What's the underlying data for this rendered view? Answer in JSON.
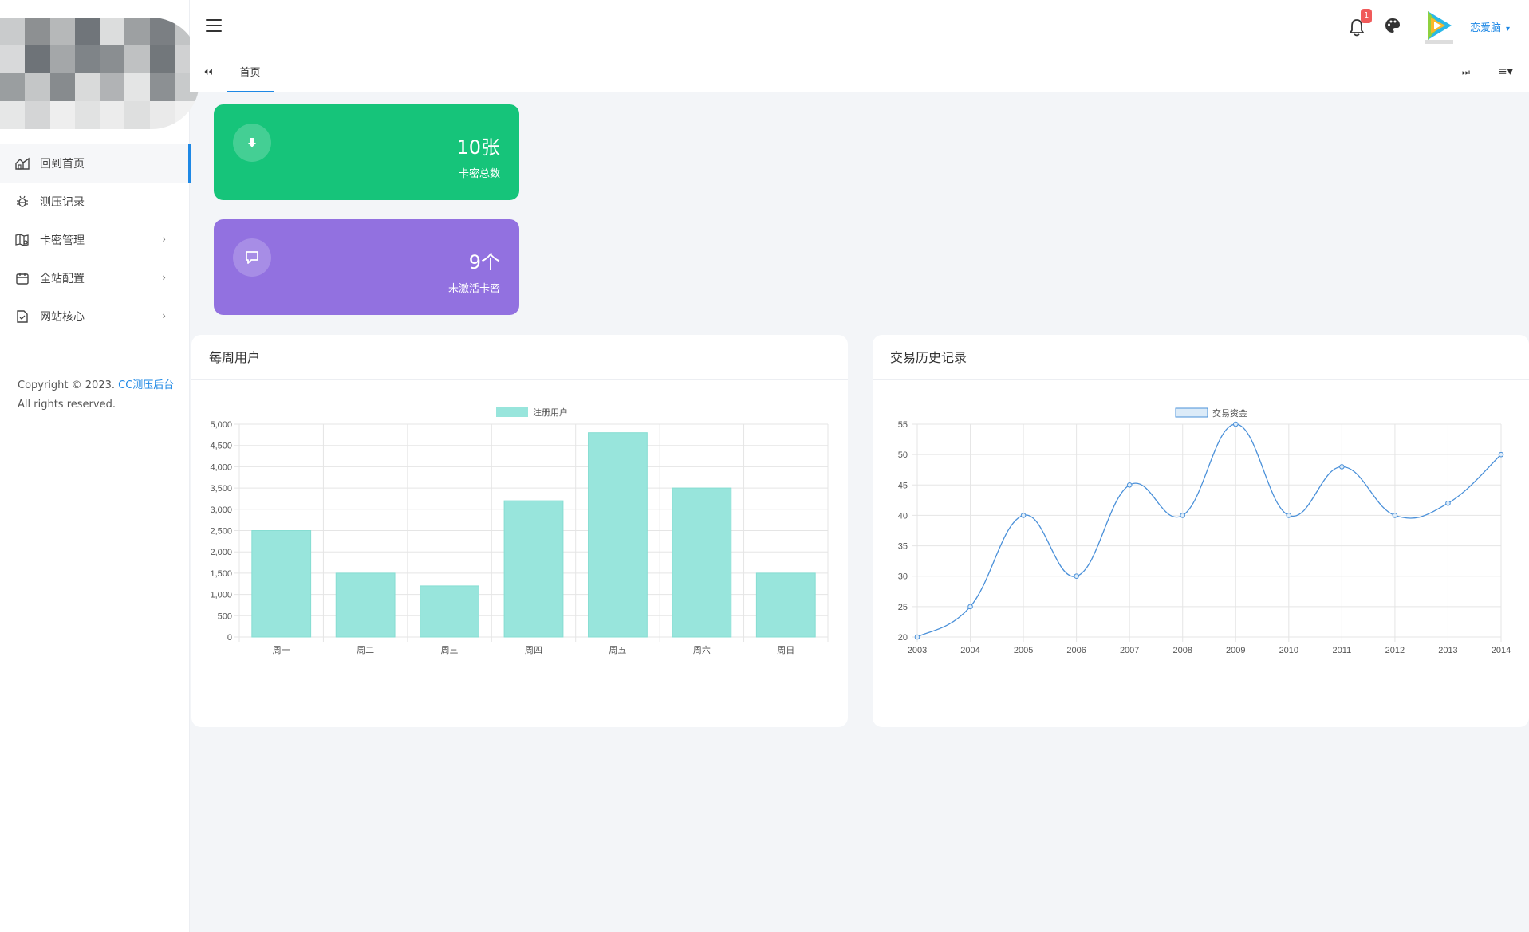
{
  "sidebar": {
    "items": [
      {
        "label": "回到首页",
        "icon": "home-icon",
        "active": true,
        "has_children": false
      },
      {
        "label": "测压记录",
        "icon": "bug-icon",
        "active": false,
        "has_children": false
      },
      {
        "label": "卡密管理",
        "icon": "map-icon",
        "active": false,
        "has_children": true
      },
      {
        "label": "全站配置",
        "icon": "calendar-icon",
        "active": false,
        "has_children": true
      },
      {
        "label": "网站核心",
        "icon": "document-icon",
        "active": false,
        "has_children": true
      }
    ],
    "chevron": "›",
    "copyright_prefix": "Copyright © 2023. ",
    "copyright_link": "CC测压后台",
    "copyright_suffix": "All rights reserved."
  },
  "topbar": {
    "notification_count": "1",
    "username": "恋爱脑",
    "caret": "▾"
  },
  "tabs": {
    "prev_label": "⏴⏴",
    "home_label": "首页",
    "next_label": "⏭",
    "menu_label": "≡▾"
  },
  "stats": [
    {
      "value": "10张",
      "label": "卡密总数",
      "icon": "download-icon",
      "color": "#16c47a"
    },
    {
      "value": "9个",
      "label": "未激活卡密",
      "icon": "message-icon",
      "color": "#9271e0"
    }
  ],
  "panels": {
    "weekly_title": "每周用户",
    "history_title": "交易历史记录"
  },
  "chart_data": [
    {
      "type": "bar",
      "title": "",
      "categories": [
        "周一",
        "周二",
        "周三",
        "周四",
        "周五",
        "周六",
        "周日"
      ],
      "series": [
        {
          "name": "注册用户",
          "values": [
            2500,
            1500,
            1200,
            3200,
            4800,
            3500,
            1500
          ],
          "color": "#98e5dc"
        }
      ],
      "ylim": [
        0,
        5000
      ],
      "yticks": [
        "0",
        "500",
        "1,000",
        "1,500",
        "2,000",
        "2,500",
        "3,000",
        "3,500",
        "4,000",
        "4,500",
        "5,000"
      ],
      "grid": true,
      "legend": "top-center"
    },
    {
      "type": "line",
      "title": "",
      "x": [
        "2003",
        "2004",
        "2005",
        "2006",
        "2007",
        "2008",
        "2009",
        "2010",
        "2011",
        "2012",
        "2013",
        "2014"
      ],
      "series": [
        {
          "name": "交易资金",
          "values": [
            20,
            25,
            40,
            30,
            45,
            40,
            55,
            40,
            48,
            40,
            42,
            50
          ],
          "color": "#4a90d9"
        }
      ],
      "ylim": [
        20,
        55
      ],
      "yticks": [
        "20",
        "25",
        "30",
        "35",
        "40",
        "45",
        "50",
        "55"
      ],
      "grid": true,
      "legend": "top-center"
    }
  ]
}
